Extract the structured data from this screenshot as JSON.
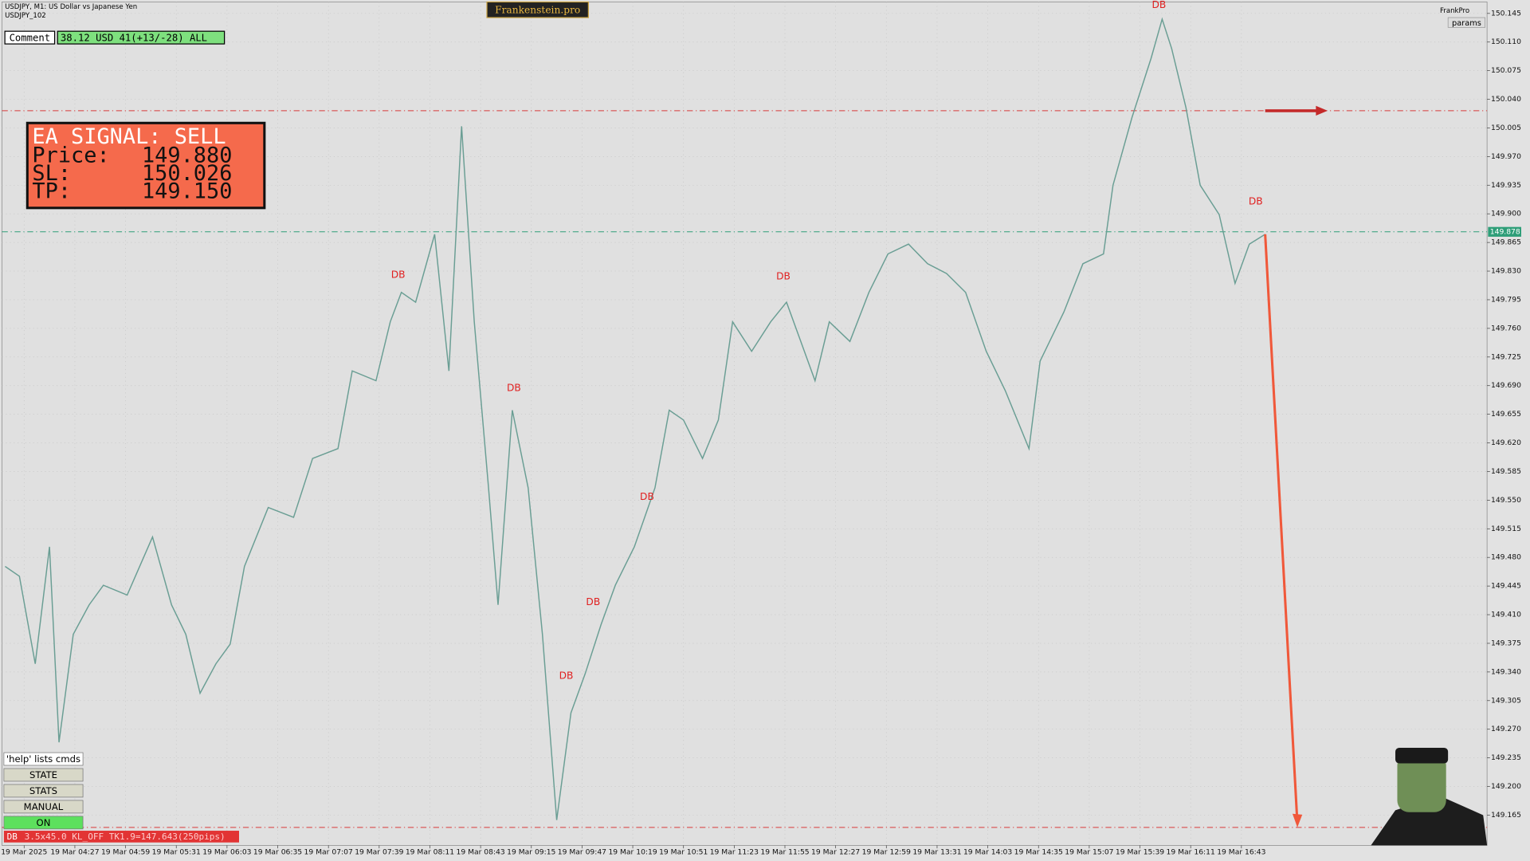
{
  "header": {
    "symbol": "USDJPY, M1:  US Dollar vs Japanese Yen",
    "template": "USDJPY_102",
    "brand": "Frankenstein.pro",
    "account": "FrankPro",
    "params": "params"
  },
  "comment": {
    "label": "Comment",
    "text": "38.12 USD 41(+13/-28) ALL"
  },
  "signal": {
    "title": "EA SIGNAL: SELL",
    "rows": [
      [
        "Price:",
        "149.880"
      ],
      [
        "SL:",
        "150.026"
      ],
      [
        "TP:",
        "149.150"
      ]
    ]
  },
  "buttons": [
    "'help' lists cmds",
    "STATE",
    "STATS",
    "MANUAL",
    "ON"
  ],
  "status": {
    "tag": "DB",
    "text": "3.5x45.0 KL_OFF TK1.9=147.643(250pips)"
  },
  "chart_data": {
    "type": "line",
    "color": "#6a9e94",
    "grid": true,
    "xlim": [
      221,
      1158
    ],
    "ylim": [
      149.128,
      150.159
    ],
    "xticks": [
      {
        "value": 235,
        "label": "19 Mar 2025"
      },
      {
        "value": 267,
        "label": "19 Mar 04:27"
      },
      {
        "value": 299,
        "label": "19 Mar 04:59"
      },
      {
        "value": 331,
        "label": "19 Mar 05:31"
      },
      {
        "value": 363,
        "label": "19 Mar 06:03"
      },
      {
        "value": 395,
        "label": "19 Mar 06:35"
      },
      {
        "value": 427,
        "label": "19 Mar 07:07"
      },
      {
        "value": 459,
        "label": "19 Mar 07:39"
      },
      {
        "value": 491,
        "label": "19 Mar 08:11"
      },
      {
        "value": 523,
        "label": "19 Mar 08:43"
      },
      {
        "value": 555,
        "label": "19 Mar 09:15"
      },
      {
        "value": 587,
        "label": "19 Mar 09:47"
      },
      {
        "value": 619,
        "label": "19 Mar 10:19"
      },
      {
        "value": 651,
        "label": "19 Mar 10:51"
      },
      {
        "value": 683,
        "label": "19 Mar 11:23"
      },
      {
        "value": 715,
        "label": "19 Mar 11:55"
      },
      {
        "value": 747,
        "label": "19 Mar 12:27"
      },
      {
        "value": 779,
        "label": "19 Mar 12:59"
      },
      {
        "value": 811,
        "label": "19 Mar 13:31"
      },
      {
        "value": 843,
        "label": "19 Mar 14:03"
      },
      {
        "value": 875,
        "label": "19 Mar 14:35"
      },
      {
        "value": 907,
        "label": "19 Mar 15:07"
      },
      {
        "value": 939,
        "label": "19 Mar 15:39"
      },
      {
        "value": 971,
        "label": "19 Mar 16:11"
      },
      {
        "value": 1003,
        "label": "19 Mar 16:43"
      }
    ],
    "yticks": [
      150.145,
      {
        "value": 150.11,
        "label": "150.110"
      },
      150.075,
      {
        "value": 150.04,
        "label": "150.040"
      },
      150.005,
      {
        "value": 149.97,
        "label": "149.970"
      },
      149.935,
      {
        "value": 149.9,
        "label": "149.900"
      },
      149.865,
      {
        "value": 149.83,
        "label": "149.830"
      },
      149.795,
      {
        "value": 149.76,
        "label": "149.760"
      },
      149.725,
      {
        "value": 149.69,
        "label": "149.690"
      },
      149.655,
      {
        "value": 149.62,
        "label": "149.620"
      },
      149.585,
      {
        "value": 149.55,
        "label": "149.550"
      },
      149.515,
      {
        "value": 149.48,
        "label": "149.480"
      },
      149.445,
      {
        "value": 149.41,
        "label": "149.410"
      },
      149.375,
      {
        "value": 149.34,
        "label": "149.340"
      },
      149.305,
      {
        "value": 149.27,
        "label": "149.270"
      },
      149.235,
      {
        "value": 149.2,
        "label": "149.200"
      },
      149.165
    ],
    "x": [
      223,
      232,
      242,
      251,
      257,
      266,
      276,
      285,
      300,
      316,
      328,
      337,
      346,
      356,
      365,
      374,
      389,
      405,
      417,
      433,
      442,
      457,
      466,
      473,
      482,
      494,
      503,
      511,
      519,
      528,
      534,
      543,
      553,
      562,
      571,
      580,
      589,
      599,
      608,
      620,
      633,
      642,
      651,
      663,
      673,
      682,
      694,
      706,
      716,
      725,
      734,
      743,
      756,
      768,
      780,
      793,
      805,
      817,
      829,
      842,
      854,
      869,
      876,
      891,
      903,
      916,
      922,
      934,
      946,
      953,
      959,
      968,
      977,
      989,
      999,
      1008,
      1018
    ],
    "values": [
      149.469,
      149.457,
      149.35,
      149.493,
      149.254,
      149.386,
      149.422,
      149.446,
      149.434,
      149.505,
      149.422,
      149.386,
      149.314,
      149.35,
      149.374,
      149.469,
      149.541,
      149.529,
      149.601,
      149.613,
      149.708,
      149.696,
      149.768,
      149.804,
      149.792,
      149.875,
      149.708,
      150.007,
      149.768,
      149.565,
      149.422,
      149.66,
      149.565,
      149.386,
      149.159,
      149.29,
      149.338,
      149.398,
      149.446,
      149.493,
      149.565,
      149.66,
      149.648,
      149.601,
      149.648,
      149.768,
      149.732,
      149.768,
      149.792,
      149.744,
      149.696,
      149.768,
      149.744,
      149.804,
      149.851,
      149.863,
      149.839,
      149.827,
      149.804,
      149.732,
      149.684,
      149.613,
      149.72,
      149.78,
      149.839,
      149.851,
      149.935,
      150.018,
      150.09,
      150.138,
      150.102,
      150.03,
      149.935,
      149.899,
      149.815,
      149.863,
      149.875
    ],
    "hlines": [
      {
        "value": 150.026,
        "color": "#d83a3a"
      },
      {
        "value": 149.878,
        "color": "#2e9e78"
      },
      {
        "value": 149.15,
        "color": "#d83a3a"
      }
    ],
    "annotations": [
      {
        "text": "DB",
        "x": 471,
        "y": 149.825
      },
      {
        "text": "DB",
        "x": 544,
        "y": 149.687
      },
      {
        "text": "DB",
        "x": 594,
        "y": 149.425
      },
      {
        "text": "DB",
        "x": 577,
        "y": 149.335
      },
      {
        "text": "DB",
        "x": 628,
        "y": 149.554
      },
      {
        "text": "DB",
        "x": 714,
        "y": 149.823
      },
      {
        "text": "DB",
        "x": 951,
        "y": 150.155
      },
      {
        "text": "DB",
        "x": 1012,
        "y": 149.915
      }
    ]
  }
}
